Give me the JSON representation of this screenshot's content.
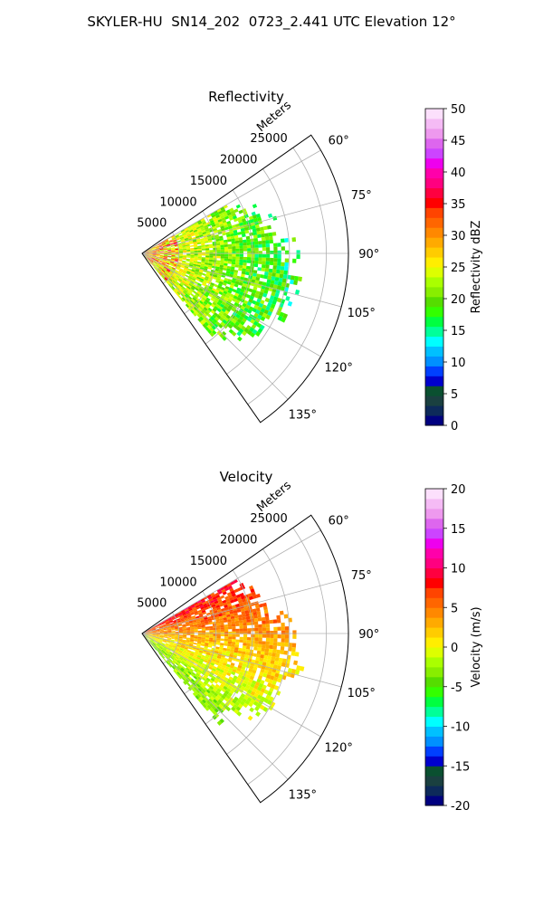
{
  "title": "SKYLER-HU  SN14_202  0723_2.441 UTC Elevation 12°",
  "range_label": "Meters",
  "chart_data": [
    {
      "type": "heatmap",
      "subtype": "radar-sector-ppi",
      "title": "Reflectivity",
      "radial_label": "Meters",
      "r_ticks": [
        5000,
        10000,
        15000,
        20000,
        25000
      ],
      "r_max": 28000,
      "theta_range_deg": [
        55,
        145
      ],
      "theta_ticks": [
        "60°",
        "75°",
        "90°",
        "105°",
        "120°",
        "135°"
      ],
      "theta_tick_values": [
        60,
        75,
        90,
        105,
        120,
        135
      ],
      "grid": true,
      "colorbar": {
        "label": "Reflectivity dBZ",
        "min": 0,
        "max": 50,
        "ticks": [
          0,
          5,
          10,
          15,
          20,
          25,
          30,
          35,
          40,
          45,
          50
        ],
        "colors": [
          "#000080",
          "#0d2a5a",
          "#1a4040",
          "#0a5030",
          "#0000cd",
          "#0040ff",
          "#0090ff",
          "#00c0ff",
          "#00ffff",
          "#00ff99",
          "#00ff40",
          "#33ff00",
          "#55dd00",
          "#88ee00",
          "#aaff00",
          "#ddff00",
          "#ffee00",
          "#ffcc00",
          "#ffaa00",
          "#ff8800",
          "#ff6600",
          "#ff4400",
          "#ff0000",
          "#ff0040",
          "#ff0080",
          "#ff00aa",
          "#ee00ee",
          "#cc44ff",
          "#dd66ee",
          "#ee99ee",
          "#f5bbf5",
          "#fce0fc"
        ]
      },
      "echo": {
        "r_extent": 23000,
        "inner_value": 26,
        "mid_value": 22,
        "outer_value": 16
      }
    },
    {
      "type": "heatmap",
      "subtype": "radar-sector-ppi",
      "title": "Velocity",
      "radial_label": "Meters",
      "r_ticks": [
        5000,
        10000,
        15000,
        20000,
        25000
      ],
      "r_max": 28000,
      "theta_range_deg": [
        55,
        145
      ],
      "theta_ticks": [
        "60°",
        "75°",
        "90°",
        "105°",
        "120°",
        "135°"
      ],
      "theta_tick_values": [
        60,
        75,
        90,
        105,
        120,
        135
      ],
      "grid": true,
      "colorbar": {
        "label": "Velocity (m/s)",
        "min": -20,
        "max": 20,
        "ticks": [
          -20,
          -15,
          -10,
          -5,
          0,
          5,
          10,
          15,
          20
        ],
        "colors": [
          "#000080",
          "#0d2a5a",
          "#1a4040",
          "#0a5030",
          "#0000cd",
          "#0040ff",
          "#0090ff",
          "#00c0ff",
          "#00ffff",
          "#00ff99",
          "#00ff40",
          "#33ff00",
          "#55dd00",
          "#88ee00",
          "#aaff00",
          "#ddff00",
          "#ffee00",
          "#ffcc00",
          "#ffaa00",
          "#ff8800",
          "#ff6600",
          "#ff4400",
          "#ff0000",
          "#ff0040",
          "#ff0080",
          "#ff00aa",
          "#ee00ee",
          "#cc44ff",
          "#dd66ee",
          "#ee99ee",
          "#f5bbf5",
          "#fce0fc"
        ]
      },
      "echo": {
        "r_extent": 23000,
        "north_value": 9,
        "east_value": 2,
        "south_value": -4
      }
    }
  ]
}
